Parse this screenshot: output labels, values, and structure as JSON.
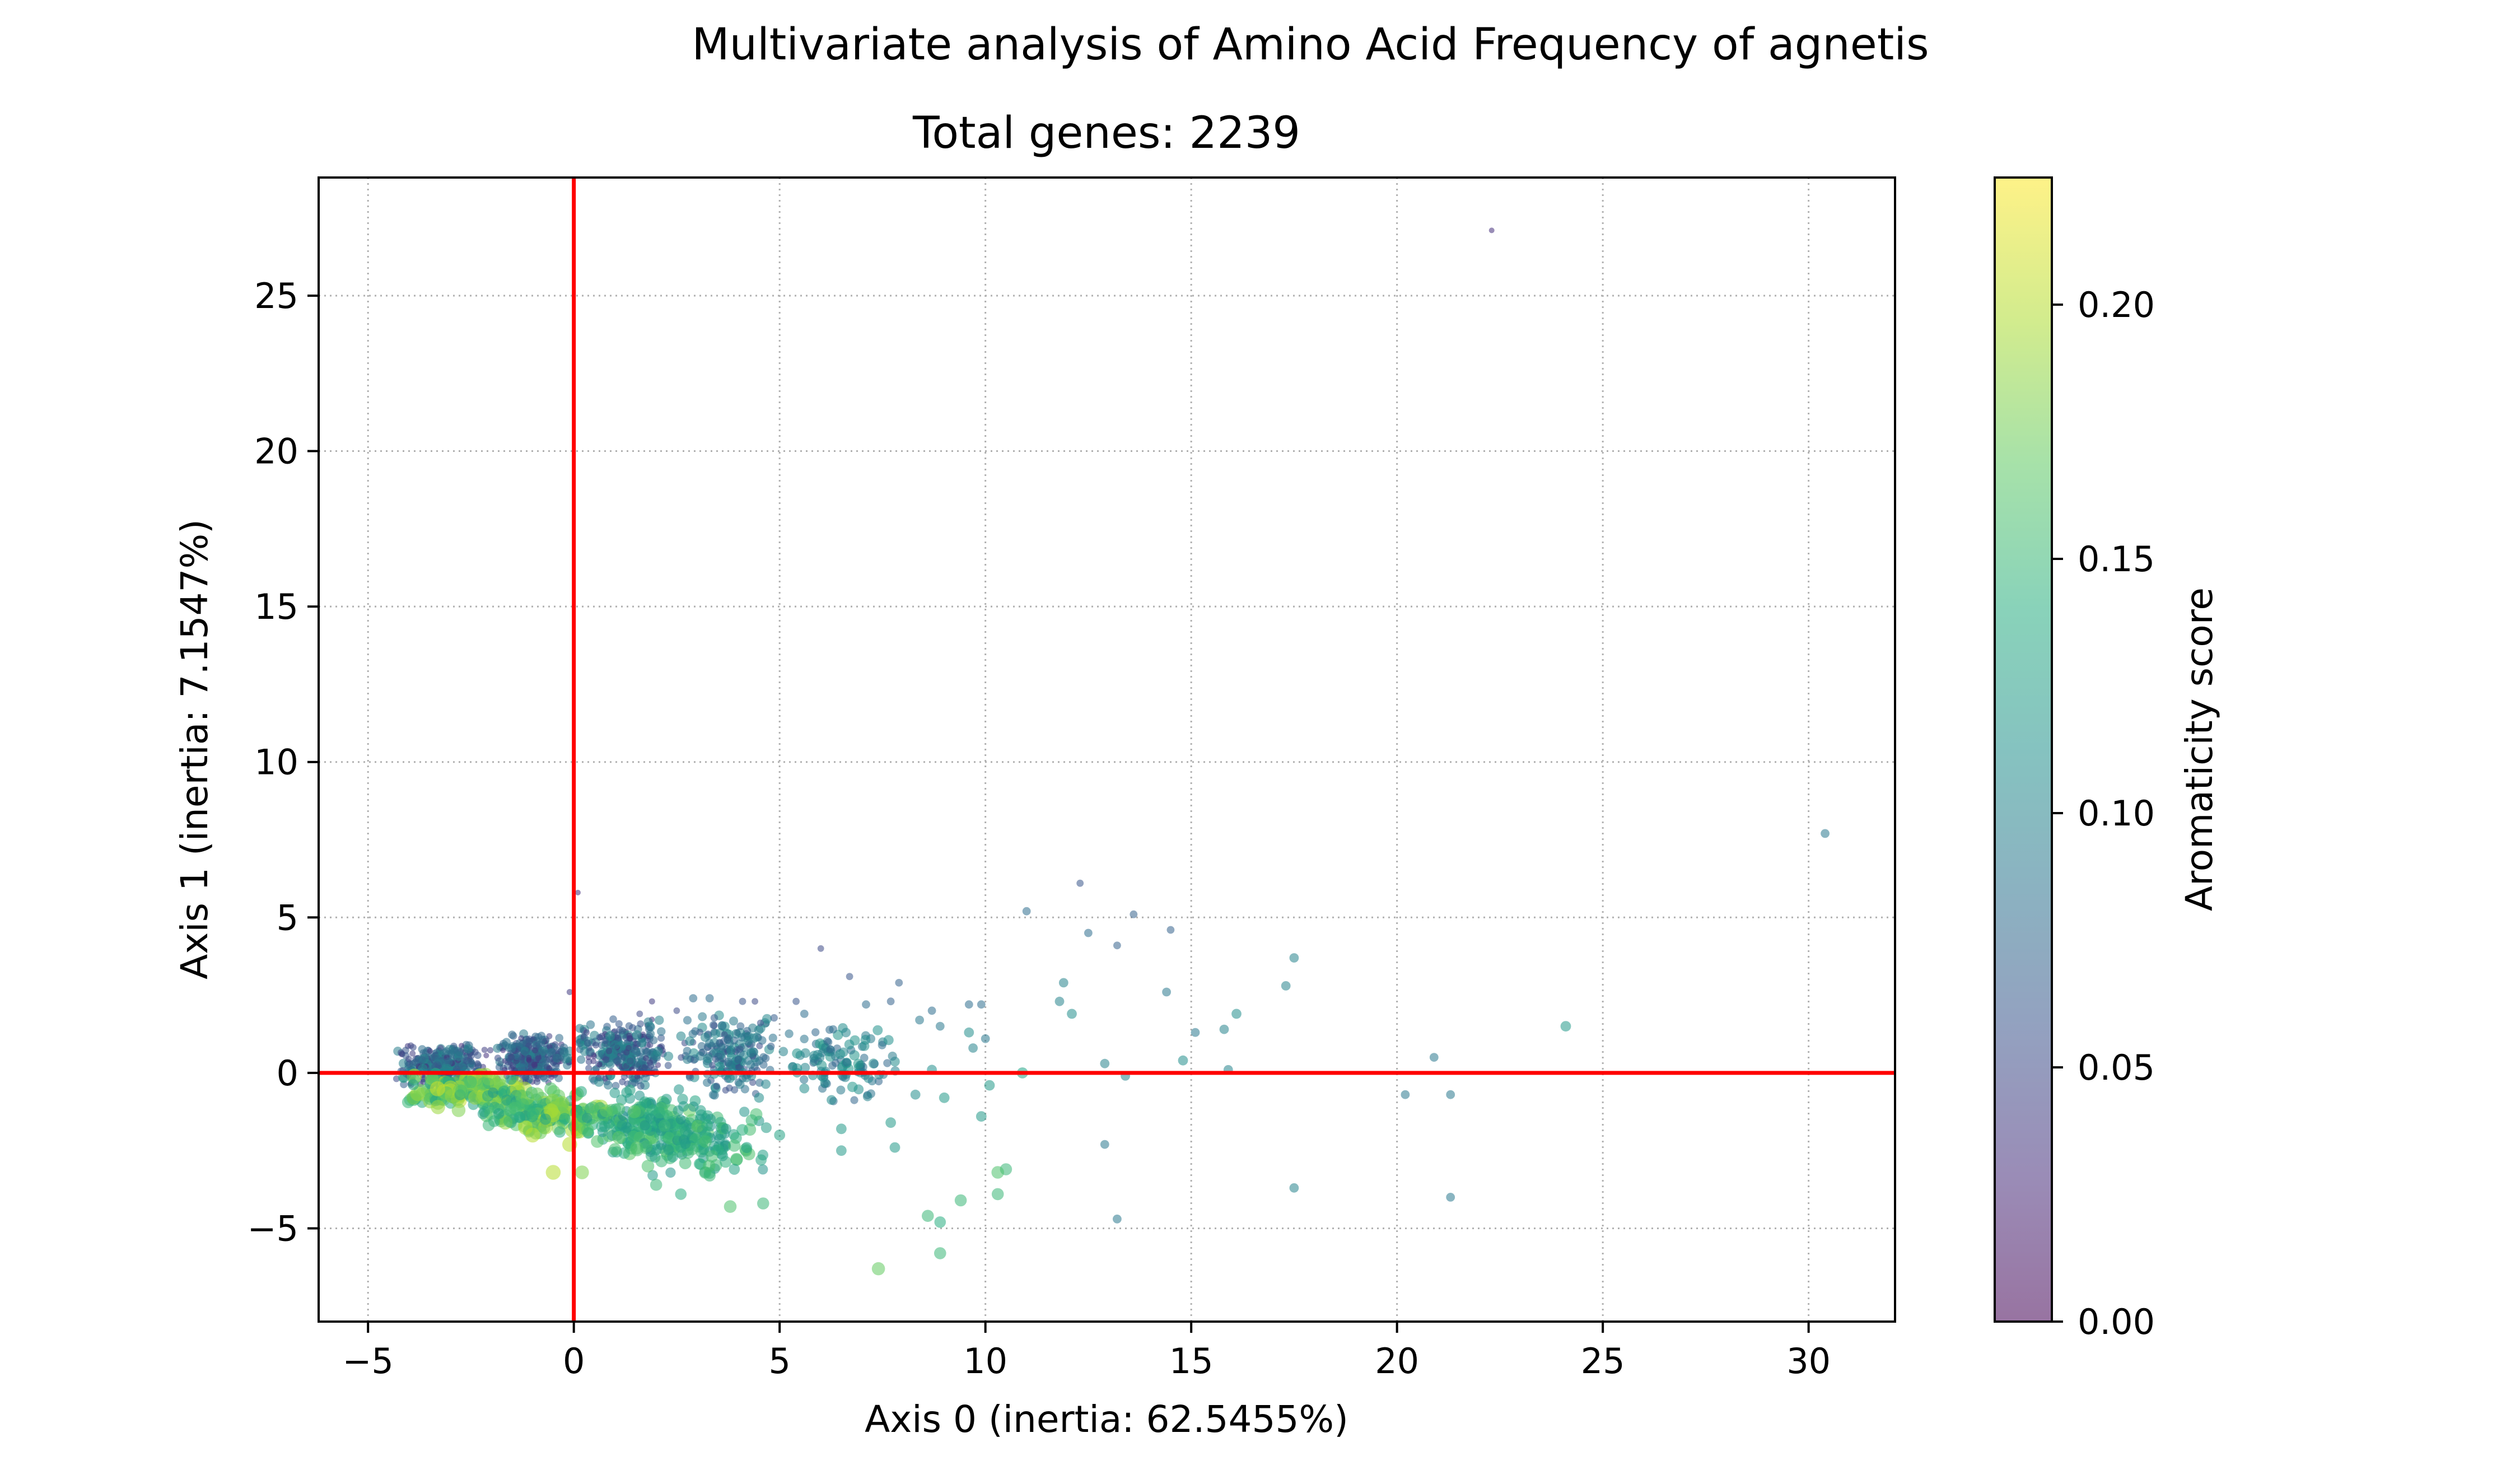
{
  "chart_data": {
    "type": "scatter",
    "title": "Multivariate analysis of Amino Acid Frequency of agnetis",
    "subtitle": "Total genes: 2239",
    "xlabel": "Axis 0 (inertia: 62.5455%)",
    "ylabel": "Axis 1 (inertia: 7.1547%)",
    "xlim": [
      -6.2,
      32.1
    ],
    "ylim": [
      -8.0,
      28.8
    ],
    "xticks": [
      -5,
      0,
      5,
      10,
      15,
      20,
      25,
      30
    ],
    "xtick_labels": [
      "−5",
      "0",
      "5",
      "10",
      "15",
      "20",
      "25",
      "30"
    ],
    "yticks": [
      -5,
      0,
      5,
      10,
      15,
      20,
      25
    ],
    "ytick_labels": [
      "−5",
      "0",
      "5",
      "10",
      "15",
      "20",
      "25"
    ],
    "grid": true,
    "reference_lines": {
      "x": 0,
      "y": 0,
      "color": "#ff0000"
    },
    "colorbar": {
      "label": "Aromaticity score",
      "range": [
        0.0,
        0.225
      ],
      "ticks": [
        0.0,
        0.05,
        0.1,
        0.15,
        0.2
      ],
      "tick_labels": [
        "0.00",
        "0.05",
        "0.10",
        "0.15",
        "0.20"
      ],
      "colormap": "viridis",
      "alpha": 0.55
    },
    "points": [
      {
        "x": 22.3,
        "y": 27.1,
        "c": 0.03
      },
      {
        "x": 30.4,
        "y": 7.7,
        "c": 0.09
      },
      {
        "x": 24.1,
        "y": 1.5,
        "c": 0.12
      },
      {
        "x": 20.9,
        "y": 0.5,
        "c": 0.09
      },
      {
        "x": 20.2,
        "y": -0.7,
        "c": 0.09
      },
      {
        "x": 21.3,
        "y": -0.7,
        "c": 0.09
      },
      {
        "x": 21.3,
        "y": -4.0,
        "c": 0.09
      },
      {
        "x": 17.5,
        "y": -3.7,
        "c": 0.1
      },
      {
        "x": 17.5,
        "y": 3.7,
        "c": 0.1
      },
      {
        "x": 17.3,
        "y": 2.8,
        "c": 0.1
      },
      {
        "x": 16.1,
        "y": 1.9,
        "c": 0.11
      },
      {
        "x": 15.8,
        "y": 1.4,
        "c": 0.1
      },
      {
        "x": 15.1,
        "y": 1.3,
        "c": 0.09
      },
      {
        "x": 14.4,
        "y": 2.6,
        "c": 0.09
      },
      {
        "x": 14.8,
        "y": 0.4,
        "c": 0.11
      },
      {
        "x": 15.9,
        "y": 0.1,
        "c": 0.1
      },
      {
        "x": 12.3,
        "y": 6.1,
        "c": 0.06
      },
      {
        "x": 13.6,
        "y": 5.1,
        "c": 0.07
      },
      {
        "x": 11.0,
        "y": 5.2,
        "c": 0.08
      },
      {
        "x": 12.5,
        "y": 4.5,
        "c": 0.08
      },
      {
        "x": 14.5,
        "y": 4.6,
        "c": 0.07
      },
      {
        "x": 13.2,
        "y": 4.1,
        "c": 0.07
      },
      {
        "x": 11.9,
        "y": 2.9,
        "c": 0.1
      },
      {
        "x": 11.8,
        "y": 2.3,
        "c": 0.1
      },
      {
        "x": 12.1,
        "y": 1.9,
        "c": 0.11
      },
      {
        "x": 12.9,
        "y": 0.3,
        "c": 0.1
      },
      {
        "x": 13.4,
        "y": -0.1,
        "c": 0.1
      },
      {
        "x": 12.9,
        "y": -2.3,
        "c": 0.09
      },
      {
        "x": 13.2,
        "y": -4.7,
        "c": 0.09
      },
      {
        "x": 10.5,
        "y": -3.1,
        "c": 0.15
      },
      {
        "x": 10.3,
        "y": -3.2,
        "c": 0.16
      },
      {
        "x": 10.3,
        "y": -3.9,
        "c": 0.15
      },
      {
        "x": 9.4,
        "y": -4.1,
        "c": 0.15
      },
      {
        "x": 8.6,
        "y": -4.6,
        "c": 0.15
      },
      {
        "x": 8.9,
        "y": -4.8,
        "c": 0.14
      },
      {
        "x": 8.9,
        "y": -5.8,
        "c": 0.15
      },
      {
        "x": 7.4,
        "y": -6.3,
        "c": 0.17
      },
      {
        "x": 9.9,
        "y": -1.4,
        "c": 0.12
      },
      {
        "x": 10.1,
        "y": -0.4,
        "c": 0.12
      },
      {
        "x": 10.9,
        "y": 0.0,
        "c": 0.13
      },
      {
        "x": 9.7,
        "y": 0.8,
        "c": 0.1
      },
      {
        "x": 10.0,
        "y": 1.1,
        "c": 0.09
      },
      {
        "x": 9.6,
        "y": 1.3,
        "c": 0.11
      },
      {
        "x": 9.9,
        "y": 2.2,
        "c": 0.08
      },
      {
        "x": 9.6,
        "y": 2.2,
        "c": 0.08
      },
      {
        "x": 8.7,
        "y": 0.1,
        "c": 0.11
      },
      {
        "x": 8.3,
        "y": -0.7,
        "c": 0.11
      },
      {
        "x": 9.0,
        "y": -0.8,
        "c": 0.12
      },
      {
        "x": 7.7,
        "y": -1.6,
        "c": 0.12
      },
      {
        "x": 7.8,
        "y": -2.4,
        "c": 0.12
      },
      {
        "x": 6.5,
        "y": -1.8,
        "c": 0.12
      },
      {
        "x": 6.5,
        "y": -2.5,
        "c": 0.12
      },
      {
        "x": 5.0,
        "y": -2.0,
        "c": 0.13
      },
      {
        "x": 7.9,
        "y": 2.9,
        "c": 0.07
      },
      {
        "x": 6.7,
        "y": 3.1,
        "c": 0.06
      },
      {
        "x": 6.0,
        "y": 4.0,
        "c": 0.05
      },
      {
        "x": 7.1,
        "y": 2.2,
        "c": 0.08
      },
      {
        "x": 7.7,
        "y": 2.3,
        "c": 0.07
      },
      {
        "x": 8.4,
        "y": 1.7,
        "c": 0.09
      },
      {
        "x": 8.7,
        "y": 2.0,
        "c": 0.08
      },
      {
        "x": 8.9,
        "y": 1.5,
        "c": 0.09
      },
      {
        "x": 0.1,
        "y": 5.8,
        "c": 0.03
      },
      {
        "x": -0.1,
        "y": 2.6,
        "c": 0.04
      },
      {
        "x": 4.6,
        "y": -4.2,
        "c": 0.15
      },
      {
        "x": 3.8,
        "y": -4.3,
        "c": 0.16
      },
      {
        "x": 3.3,
        "y": -3.3,
        "c": 0.15
      },
      {
        "x": 2.6,
        "y": -3.9,
        "c": 0.14
      },
      {
        "x": 2.0,
        "y": -3.6,
        "c": 0.15
      },
      {
        "x": 1.8,
        "y": -3.0,
        "c": 0.16
      },
      {
        "x": 0.2,
        "y": -3.2,
        "c": 0.18
      },
      {
        "x": -0.5,
        "y": -3.2,
        "c": 0.2
      },
      {
        "x": -0.1,
        "y": -2.3,
        "c": 0.2
      },
      {
        "x": -1.0,
        "y": -2.0,
        "c": 0.2
      },
      {
        "x": -3.3,
        "y": -1.1,
        "c": 0.19
      },
      {
        "x": -3.9,
        "y": -0.8,
        "c": 0.18
      },
      {
        "x": -2.8,
        "y": -1.2,
        "c": 0.18
      },
      {
        "x": 4.2,
        "y": -2.4,
        "c": 0.13
      },
      {
        "x": 3.9,
        "y": -3.1,
        "c": 0.13
      },
      {
        "x": 2.4,
        "y": -2.7,
        "c": 0.13
      },
      {
        "x": 3.7,
        "y": -1.8,
        "c": 0.12
      },
      {
        "x": 4.5,
        "y": -0.8,
        "c": 0.11
      },
      {
        "x": 5.6,
        "y": -0.5,
        "c": 0.11
      },
      {
        "x": 2.9,
        "y": 2.4,
        "c": 0.08
      },
      {
        "x": 3.3,
        "y": 2.4,
        "c": 0.08
      },
      {
        "x": 4.1,
        "y": 2.3,
        "c": 0.06
      },
      {
        "x": 4.4,
        "y": 2.3,
        "c": 0.05
      },
      {
        "x": 1.9,
        "y": 2.3,
        "c": 0.04
      },
      {
        "x": 2.5,
        "y": 2.0,
        "c": 0.05
      },
      {
        "x": 1.6,
        "y": 1.9,
        "c": 0.05
      },
      {
        "x": 5.4,
        "y": 2.3,
        "c": 0.06
      },
      {
        "x": 5.6,
        "y": 1.9,
        "c": 0.08
      },
      {
        "x": 6.3,
        "y": 1.4,
        "c": 0.08
      }
    ],
    "cloud": [
      {
        "x": [
          -4.4,
          -2.0
        ],
        "y": [
          -0.5,
          1.0
        ],
        "c": [
          0.03,
          0.11
        ],
        "n": 300
      },
      {
        "x": [
          -2.0,
          0.0
        ],
        "y": [
          -0.4,
          1.3
        ],
        "c": [
          0.03,
          0.1
        ],
        "n": 320
      },
      {
        "x": [
          0.0,
          2.5
        ],
        "y": [
          -0.5,
          1.8
        ],
        "c": [
          0.03,
          0.11
        ],
        "n": 320
      },
      {
        "x": [
          2.5,
          5.0
        ],
        "y": [
          -0.8,
          2.0
        ],
        "c": [
          0.05,
          0.11
        ],
        "n": 200
      },
      {
        "x": [
          5.0,
          8.0
        ],
        "y": [
          -1.0,
          1.8
        ],
        "c": [
          0.07,
          0.12
        ],
        "n": 110
      },
      {
        "x": [
          -4.3,
          -1.0
        ],
        "y": [
          -1.1,
          0.0
        ],
        "c": [
          0.12,
          0.21
        ],
        "n": 160
      },
      {
        "x": [
          -2.5,
          1.0
        ],
        "y": [
          -2.0,
          -0.5
        ],
        "c": [
          0.12,
          0.2
        ],
        "n": 180
      },
      {
        "x": [
          0.0,
          3.5
        ],
        "y": [
          -2.8,
          -0.5
        ],
        "c": [
          0.11,
          0.17
        ],
        "n": 200
      },
      {
        "x": [
          1.5,
          5.0
        ],
        "y": [
          -3.5,
          -1.0
        ],
        "c": [
          0.11,
          0.16
        ],
        "n": 100
      }
    ]
  }
}
